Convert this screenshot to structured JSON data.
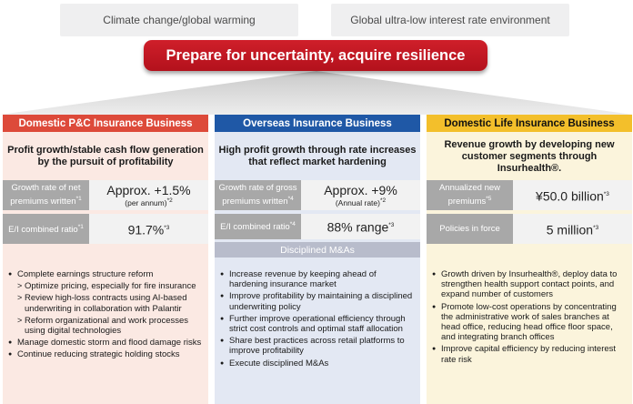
{
  "context": {
    "left": "Climate change/global warming",
    "right": "Global ultra-low interest rate environment"
  },
  "banner": "Prepare for uncertainty, acquire resilience",
  "columns": [
    {
      "title": "Domestic P&C Insurance Business",
      "summary": "Profit growth/stable cash flow generation by the pursuit of profitability",
      "metrics": [
        {
          "label": "Growth rate of net premiums written",
          "label_note": "*1",
          "value": "Approx. +1.5%",
          "sub": "(per annum)",
          "sub_note": "*2"
        },
        {
          "label": "E/I combined ratio",
          "label_note": "*1",
          "value": "91.7%",
          "value_note": "*3"
        }
      ],
      "items": [
        {
          "level": 0,
          "text": "Complete earnings structure reform"
        },
        {
          "level": 1,
          "text": "Optimize pricing, especially for fire insurance"
        },
        {
          "level": 1,
          "text": "Review high-loss contracts using AI-based underwriting in collaboration with Palantir"
        },
        {
          "level": 1,
          "text": "Reform organizational and work processes using digital technologies"
        },
        {
          "level": 0,
          "text": "Manage domestic storm and flood damage risks"
        },
        {
          "level": 0,
          "text": "Continue reducing strategic holding stocks"
        }
      ]
    },
    {
      "title": "Overseas Insurance Business",
      "summary": "High profit growth through rate increases that reflect market hardening",
      "metrics": [
        {
          "label": "Growth rate of gross premiums written",
          "label_note": "*4",
          "value": "Approx. +9%",
          "sub": "(Annual rate)",
          "sub_note": "*2"
        },
        {
          "label": "E/I combined ratio",
          "label_note": "*4",
          "value": "88% range",
          "value_note": "*3"
        }
      ],
      "bar": "Disciplined M&As",
      "items": [
        {
          "level": 0,
          "text": "Increase revenue by keeping ahead of hardening insurance market"
        },
        {
          "level": 0,
          "text": "Improve profitability by maintaining a disciplined underwriting policy"
        },
        {
          "level": 0,
          "text": "Further improve operational efficiency through strict cost controls and optimal staff allocation"
        },
        {
          "level": 0,
          "text": "Share best practices across retail platforms to improve profitability"
        },
        {
          "level": 0,
          "text": "Execute disciplined M&As"
        }
      ]
    },
    {
      "title": "Domestic Life Insurance Business",
      "summary": "Revenue growth by developing new customer segments through Insurhealth®.",
      "metrics": [
        {
          "label": "Annualized new premiums",
          "label_note": "*5",
          "value": "¥50.0 billion",
          "value_note": "*3"
        },
        {
          "label": "Policies in force",
          "value": "5 million",
          "value_note": "*3"
        }
      ],
      "items": [
        {
          "level": 0,
          "text": "Growth driven by Insurhealth®, deploy data to strengthen health support contact points, and expand number of customers"
        },
        {
          "level": 0,
          "text": "Promote low-cost operations by concentrating the administrative work of sales branches at head office, reducing head office floor space, and integrating branch offices"
        },
        {
          "level": 0,
          "text": "Improve capital efficiency by reducing interest rate risk"
        }
      ]
    }
  ]
}
